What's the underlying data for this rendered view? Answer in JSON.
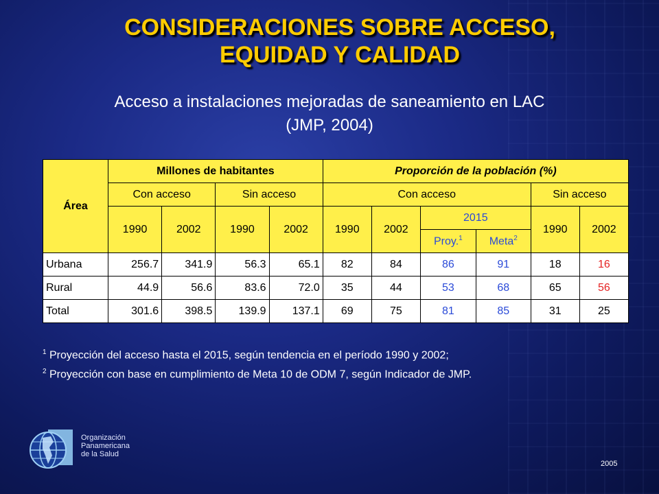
{
  "title_line1": "CONSIDERACIONES SOBRE ACCESO,",
  "title_line2": "EQUIDAD Y CALIDAD",
  "subtitle_line1": "Acceso a instalaciones mejoradas de saneamiento en LAC",
  "subtitle_line2": "(JMP, 2004)",
  "table": {
    "area": "Área",
    "millones": "Millones de habitantes",
    "proporcion": "Proporción de la población (%)",
    "con_acceso": "Con acceso",
    "sin_acceso": "Sin acceso",
    "y1990": "1990",
    "y2002": "2002",
    "y2015": "2015",
    "proy": "Proy.",
    "meta": "Meta",
    "sup1": "1",
    "sup2": "2",
    "rows": [
      {
        "label": "Urbana",
        "values": [
          "256.7",
          "341.9",
          "56.3",
          "65.1",
          "82",
          "84",
          "86",
          "91",
          "18",
          "16"
        ]
      },
      {
        "label": "Rural",
        "values": [
          "44.9",
          "56.6",
          "83.6",
          "72.0",
          "35",
          "44",
          "53",
          "68",
          "65",
          "56"
        ]
      },
      {
        "label": "Total",
        "values": [
          "301.6",
          "398.5",
          "139.9",
          "137.1",
          "69",
          "75",
          "81",
          "85",
          "31",
          "25"
        ]
      }
    ]
  },
  "notes": {
    "n1_sup": "1",
    "n1": " Proyección del acceso hasta el 2015, según tendencia en el período 1990 y 2002;",
    "n2_sup": "2",
    "n2": " Proyección con base en cumplimiento de Meta 10 de ODM 7, según Indicador de JMP."
  },
  "org_line1": "Organización",
  "org_line2": "Panamericana",
  "org_line3": "de la Salud",
  "year": "2005",
  "colors": {
    "title": "#ffcc00",
    "header_fill": "#ffef4a",
    "projection": "#2a4ad8",
    "highlight": "#e52323"
  },
  "icons": [
    "globe-logo-icon"
  ]
}
